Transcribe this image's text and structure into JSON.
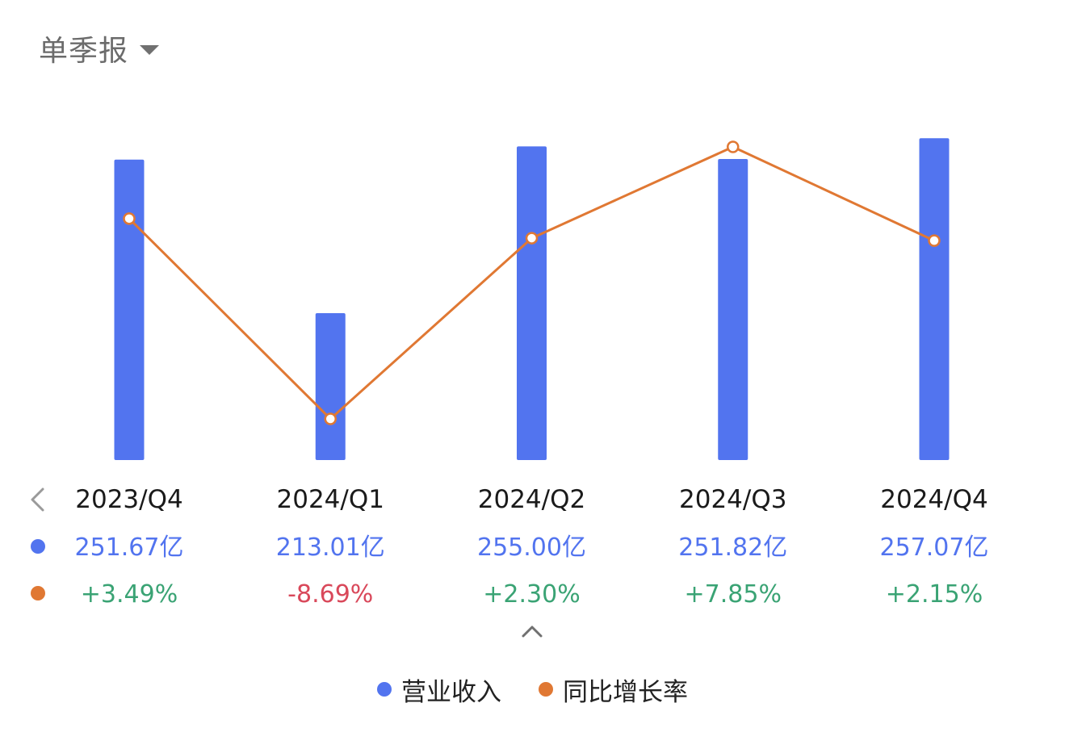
{
  "header": {
    "period_label": "单季报"
  },
  "colors": {
    "revenue": "#5274ef",
    "growth": "#e07833",
    "positive": "#3aa374",
    "negative": "#d9485a",
    "value_text": "#5274ef",
    "category_text": "#1a1a1a",
    "arrow": "#9a9a9a"
  },
  "chart_data": {
    "type": "bar",
    "categories": [
      "2023/Q4",
      "2024/Q1",
      "2024/Q2",
      "2024/Q3",
      "2024/Q4"
    ],
    "series": [
      {
        "name": "营业收入",
        "type": "bar",
        "values": [
          251.67,
          213.01,
          255.0,
          251.82,
          257.07
        ],
        "labels": [
          "251.67亿",
          "213.01亿",
          "255.00亿",
          "251.82亿",
          "257.07亿"
        ]
      },
      {
        "name": "同比增长率",
        "type": "line",
        "values": [
          3.49,
          -8.69,
          2.3,
          7.85,
          2.15
        ],
        "labels": [
          "+3.49%",
          "-8.69%",
          "+2.30%",
          "+7.85%",
          "+2.15%"
        ]
      }
    ],
    "legend_position": "bottom"
  },
  "legend": {
    "items": [
      "营业收入",
      "同比增长率"
    ]
  }
}
